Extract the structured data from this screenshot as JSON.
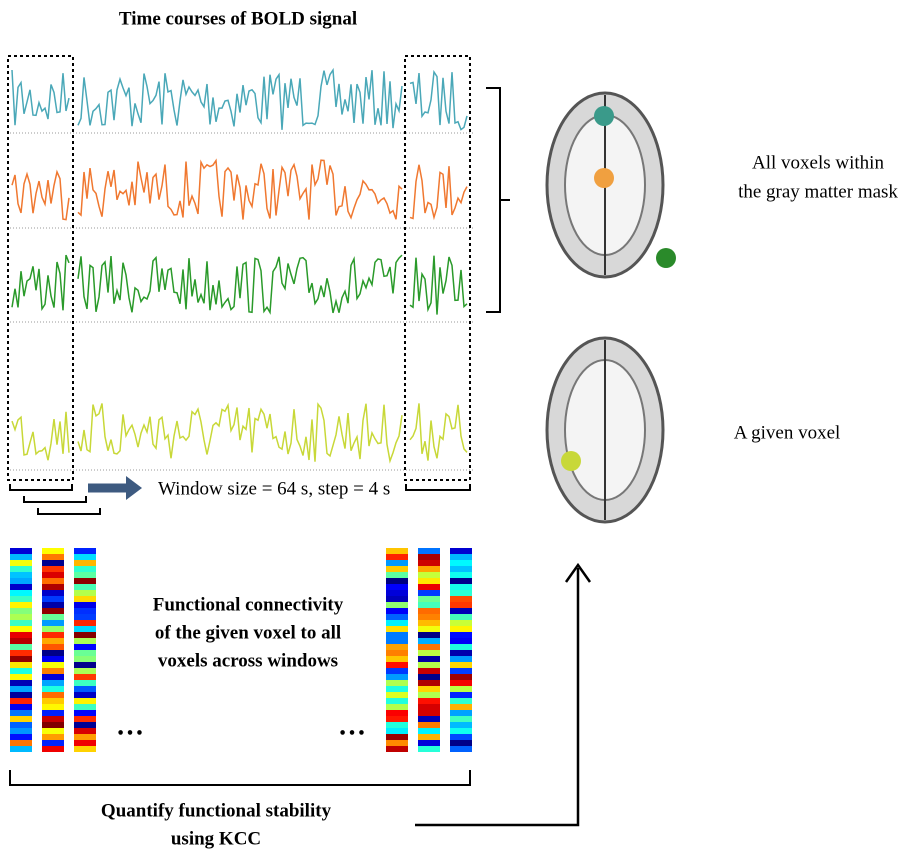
{
  "title": "Time courses of BOLD signal",
  "window_label": "Window size = 64 s, step = 4 s",
  "connectivity_label": {
    "lines": [
      "Functional connectivity",
      "of the given voxel to all",
      "voxels across windows"
    ]
  },
  "ellipses": [
    "…",
    "…"
  ],
  "mask_label": {
    "lines": [
      "All voxels within",
      "the gray matter mask"
    ]
  },
  "voxel_label": "A given voxel",
  "stability_label": {
    "lines": [
      "Quantify functional stability",
      "using KCC"
    ]
  }
}
